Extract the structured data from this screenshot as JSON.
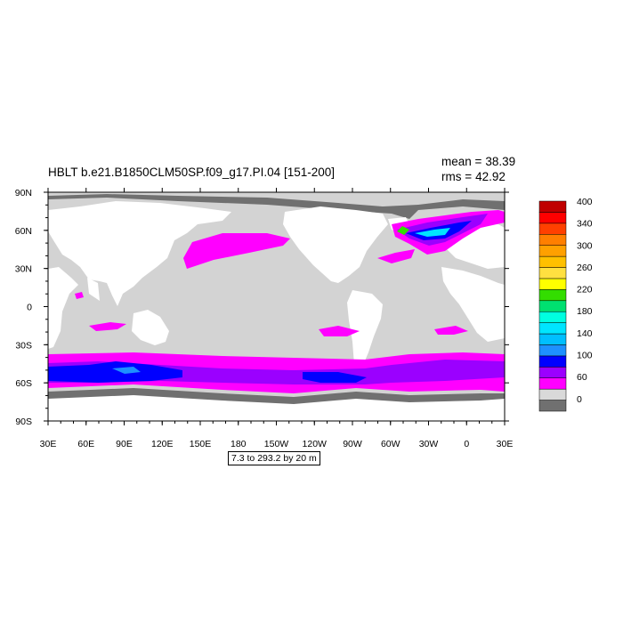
{
  "title": "HBLT b.e21.B1850CLM50SP.f09_g17.PI.04 [151-200]",
  "stats": {
    "mean_label": "mean =",
    "mean_value": "38.39",
    "rms_label": "rms =",
    "rms_value": "42.92"
  },
  "contour_info": "7.3 to 293.2 by 20 m",
  "map": {
    "lon_ticks": [
      "30E",
      "60E",
      "90E",
      "120E",
      "150E",
      "180",
      "150W",
      "120W",
      "90W",
      "60W",
      "30W",
      "0",
      "30E"
    ],
    "lat_ticks": [
      "90N",
      "60N",
      "30N",
      "0",
      "30S",
      "60S",
      "90S"
    ]
  },
  "colorbar": {
    "colors": [
      "#707070",
      "#d9d9d9",
      "#ff00ff",
      "#9b00ff",
      "#0000ff",
      "#1e90ff",
      "#00bfff",
      "#00e5ff",
      "#00ffe0",
      "#00e070",
      "#33dd00",
      "#ffff00",
      "#ffe040",
      "#ffc000",
      "#ffa000",
      "#ff7f00",
      "#ff4000",
      "#ff0000",
      "#c00000"
    ],
    "labels": [
      "400",
      "340",
      "300",
      "260",
      "220",
      "180",
      "140",
      "100",
      "60",
      "0"
    ]
  },
  "colors": {
    "land": "#ffffff",
    "ocean": "#d3d3d3",
    "ice_edge": "#707070",
    "magenta": "#ff00ff",
    "purple": "#9b00ff",
    "blue": "#0000ff"
  }
}
